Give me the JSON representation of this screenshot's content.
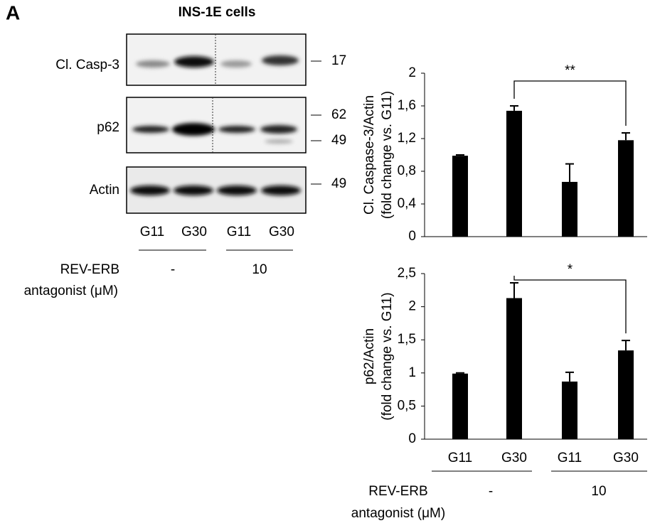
{
  "blot": {
    "panel": "A",
    "title": "INS-1E cells",
    "rows": [
      {
        "label": "Cl. Casp-3",
        "markers": [
          "17"
        ]
      },
      {
        "label": "p62",
        "markers": [
          "62",
          "49"
        ]
      },
      {
        "label": "Actin",
        "markers": [
          "49"
        ]
      }
    ],
    "lanes": [
      "G11",
      "G30",
      "G11",
      "G30"
    ],
    "treatment_title": [
      "REV-ERB",
      "antagonist (μM)"
    ],
    "treatments": [
      "-",
      "10"
    ]
  },
  "chart_data": [
    {
      "type": "bar",
      "ylabel": [
        "Cl. Caspase-3/Actin",
        "(fold change vs. G11)"
      ],
      "categories": [
        null,
        null,
        null,
        null
      ],
      "values": [
        0.99,
        1.54,
        0.67,
        1.18
      ],
      "errors": [
        0.01,
        0.06,
        0.22,
        0.09
      ],
      "color": "#000000",
      "ylim": [
        0,
        2
      ],
      "yticks": [
        0,
        {
          "value": 0.4,
          "label": "0,4"
        },
        {
          "value": 0.8,
          "label": "0,8"
        },
        {
          "value": 1.2,
          "label": "1,2"
        },
        {
          "value": 1.6,
          "label": "1,6"
        },
        2
      ],
      "annotation": "**"
    },
    {
      "type": "bar",
      "ylabel": [
        "p62/Actin",
        "(fold change vs. G11)"
      ],
      "categories": [
        "G11",
        "G30",
        "G11",
        "G30"
      ],
      "values": [
        0.99,
        2.13,
        0.87,
        1.34
      ],
      "errors": [
        0.01,
        0.23,
        0.14,
        0.15
      ],
      "color": "#000000",
      "ylim": [
        0,
        2.5
      ],
      "yticks": [
        0,
        {
          "value": 0.5,
          "label": "0,5"
        },
        1,
        {
          "value": 1.5,
          "label": "1,5"
        },
        2,
        {
          "value": 2.5,
          "label": "2,5"
        }
      ],
      "annotation": "*",
      "group_title": [
        "REV-ERB",
        "antagonist (μM)"
      ],
      "group_labels": [
        "-",
        "10"
      ]
    }
  ]
}
